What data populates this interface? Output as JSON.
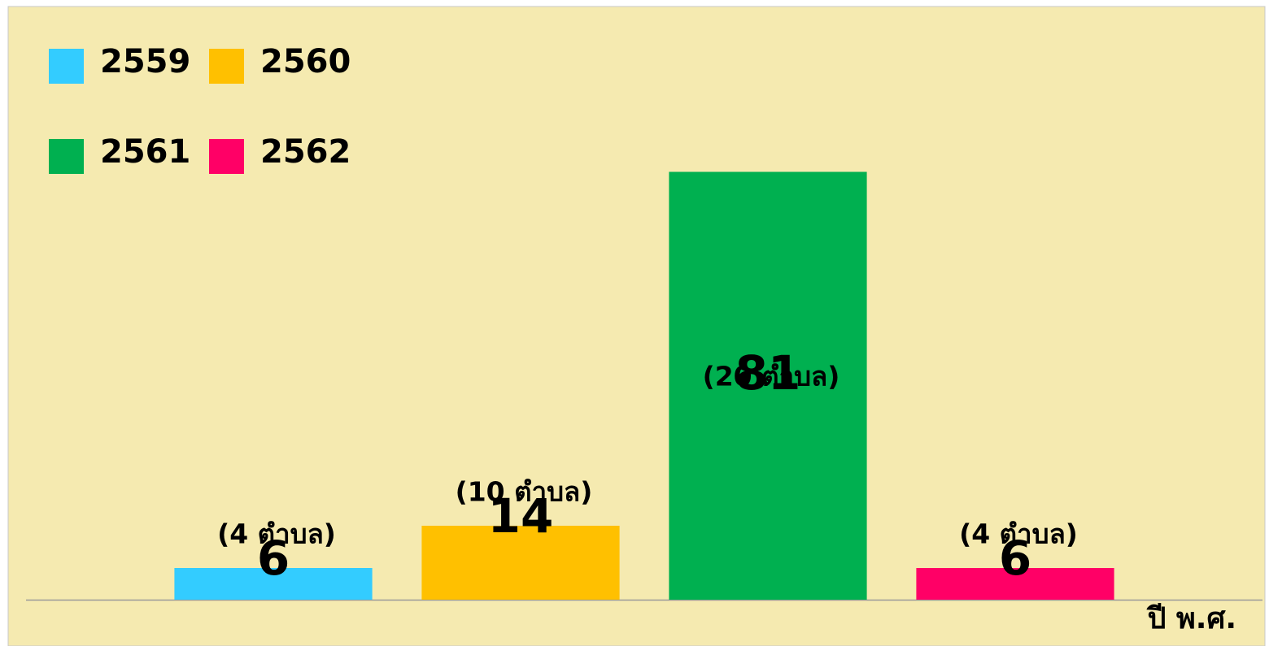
{
  "chart_data": {
    "type": "bar",
    "categories": [
      "2559",
      "2560",
      "2561",
      "2562"
    ],
    "values": [
      6,
      14,
      81,
      6
    ],
    "annotations": [
      "(4 ตำบล)",
      "(10 ตำบล)",
      "(20 ตำบล)",
      "(4 ตำบล)"
    ],
    "colors": [
      "#33ccff",
      "#ffc000",
      "#00b050",
      "#ff0066"
    ],
    "x_label": "ปี พ.ศ.",
    "ylim": [
      0,
      100
    ],
    "legend": "top-left"
  }
}
